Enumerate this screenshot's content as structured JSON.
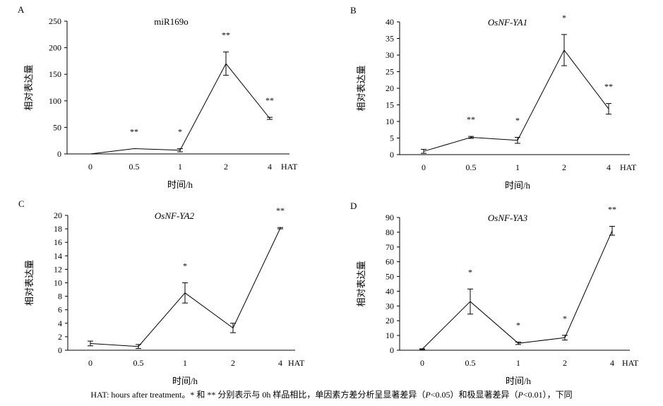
{
  "chart_data": [
    {
      "panel": "A",
      "type": "line",
      "title": "miR169o",
      "title_italic": false,
      "ylabel": "相对表达量",
      "xlabel": "时间/h",
      "x_unit": "HAT",
      "categories": [
        "0",
        "0.5",
        "1",
        "2",
        "4"
      ],
      "values": [
        0,
        10,
        7,
        170,
        67
      ],
      "errors": [
        0,
        0,
        3,
        22,
        2
      ],
      "significance": [
        "",
        "**",
        "*",
        "**",
        "**"
      ],
      "ylim": [
        0,
        250
      ],
      "yticks": [
        0,
        50,
        100,
        150,
        200,
        250
      ]
    },
    {
      "panel": "B",
      "type": "line",
      "title": "OsNF-YA1",
      "title_italic": true,
      "ylabel": "相对表达量",
      "xlabel": "时间/h",
      "x_unit": "HAT",
      "categories": [
        "0",
        "0.5",
        "1",
        "2",
        "4"
      ],
      "values": [
        1,
        5.2,
        4.3,
        31.5,
        13.8
      ],
      "errors": [
        0.6,
        0.3,
        0.9,
        4.7,
        1.6
      ],
      "significance": [
        "",
        "**",
        "*",
        "*",
        "**"
      ],
      "ylim": [
        0,
        40
      ],
      "yticks": [
        0,
        5,
        10,
        15,
        20,
        25,
        30,
        35,
        40
      ]
    },
    {
      "panel": "C",
      "type": "line",
      "title": "OsNF-YA2",
      "title_italic": true,
      "ylabel": "相对表达量",
      "xlabel": "时间/h",
      "x_unit": "HAT",
      "categories": [
        "0",
        "0.5",
        "1",
        "2",
        "4"
      ],
      "values": [
        1,
        0.55,
        8.5,
        3.3,
        18.1
      ],
      "errors": [
        0.35,
        0.3,
        1.5,
        0.7,
        0.1
      ],
      "significance": [
        "",
        "",
        "*",
        "",
        "**"
      ],
      "ylim": [
        0,
        20
      ],
      "yticks": [
        0,
        2,
        4,
        6,
        8,
        10,
        12,
        14,
        16,
        18,
        20
      ]
    },
    {
      "panel": "D",
      "type": "line",
      "title": "OsNF-YA3",
      "title_italic": true,
      "ylabel": "相对表达量",
      "xlabel": "时间/h",
      "x_unit": "HAT",
      "categories": [
        "0",
        "0.5",
        "1",
        "2",
        "4"
      ],
      "values": [
        0.7,
        33,
        4.7,
        8.5,
        81
      ],
      "errors": [
        0.3,
        8.5,
        0.8,
        1.6,
        3
      ],
      "significance": [
        "",
        "*",
        "*",
        "*",
        "**"
      ],
      "ylim": [
        0,
        90
      ],
      "yticks": [
        0,
        10,
        20,
        30,
        40,
        50,
        60,
        70,
        80,
        90
      ]
    }
  ],
  "caption": {
    "prefix": "HAT: hours after treatment。* 和 ** 分别表示与 0h 样品相比，单因素方差分析呈显著差异（",
    "p1": "P",
    "mid": "<0.05）和极显著差异（",
    "p2": "P",
    "suffix": "<0.01），下同"
  }
}
